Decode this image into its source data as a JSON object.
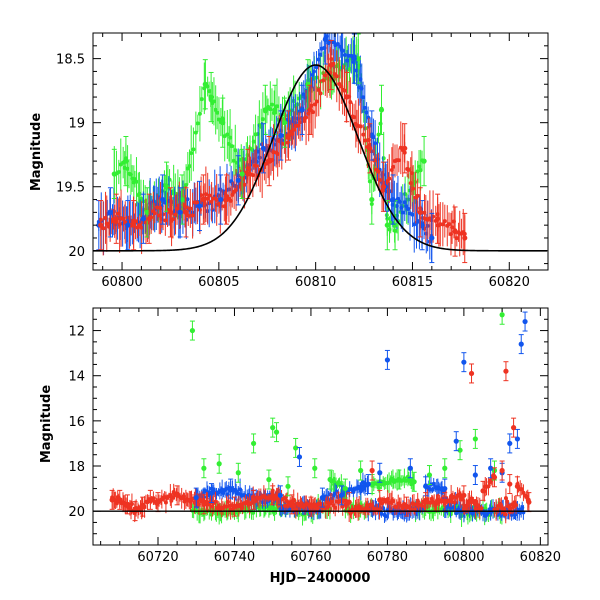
{
  "colors": {
    "green": "#33ee33",
    "blue": "#1155ee",
    "red": "#ee3322",
    "model": "#000000"
  },
  "chart_data": [
    {
      "type": "scatter",
      "panel": "top",
      "title": "",
      "xlabel": "",
      "ylabel": "Magnitude",
      "xlim": [
        60798.5,
        60822
      ],
      "ylim": [
        20.15,
        18.3
      ],
      "y_inverted": true,
      "x_ticks": [
        60800,
        60805,
        60810,
        60815,
        60820
      ],
      "x_tick_labels": [
        "60800",
        "60805",
        "60810",
        "60815",
        "60820"
      ],
      "y_ticks": [
        18.5,
        19,
        19.5,
        20
      ],
      "y_tick_labels": [
        "18.5",
        "19",
        "19.5",
        "20"
      ],
      "grid": false,
      "model_curve": {
        "peak_x": 60810,
        "peak_mag": 18.55,
        "baseline_mag": 20.0,
        "sigma_days": 2.2,
        "color": "black"
      },
      "series": [
        {
          "color_key": "green",
          "x": [
            60799.6,
            60800.2,
            60801.3,
            60802.3,
            60803.1,
            60804.3,
            60804.6,
            60805.2,
            60806.2,
            60807.4,
            60807.9,
            60808.4,
            60809.6,
            60812.2,
            60812.9,
            60813.4,
            60813.7,
            60814.1,
            60815.6
          ],
          "y": [
            19.4,
            19.3,
            19.7,
            19.5,
            19.6,
            18.7,
            18.8,
            19.0,
            19.4,
            18.9,
            18.9,
            19.0,
            18.7,
            18.5,
            19.6,
            18.9,
            19.8,
            19.8,
            19.3
          ]
        },
        {
          "color_key": "blue",
          "x": [
            60798.8,
            60799.4,
            60800.3,
            60801.1,
            60802.1,
            60803.0,
            60804.0,
            60805.1,
            60806.0,
            60807.3,
            60808.2,
            60809.3,
            60810.5,
            60812.0,
            60812.9,
            60813.6,
            60814.0,
            60815.5,
            60816.0
          ],
          "y": [
            19.8,
            19.7,
            19.8,
            19.75,
            19.6,
            19.7,
            19.65,
            19.6,
            19.45,
            19.2,
            19.1,
            18.9,
            18.35,
            18.5,
            19.1,
            19.5,
            19.6,
            19.8,
            19.9
          ]
        },
        {
          "color_key": "red",
          "x": [
            60798.9,
            60799.7,
            60800.6,
            60801.4,
            60802.5,
            60803.3,
            60804.2,
            60805.4,
            60806.5,
            60807.6,
            60808.6,
            60809.7,
            60810.8,
            60811.6,
            60812.8,
            60813.5,
            60814.6,
            60815.4,
            60816.3,
            60817.2,
            60817.7
          ],
          "y": [
            19.8,
            19.75,
            19.8,
            19.75,
            19.7,
            19.7,
            19.6,
            19.6,
            19.4,
            19.3,
            19.1,
            18.9,
            18.55,
            18.8,
            19.2,
            19.5,
            19.2,
            19.7,
            19.75,
            19.85,
            19.9
          ]
        }
      ]
    },
    {
      "type": "scatter",
      "panel": "bottom",
      "title": "",
      "xlabel": "HJD−2400000",
      "ylabel": "Magnitude",
      "xlim": [
        60703,
        60822
      ],
      "ylim": [
        21.5,
        11.0
      ],
      "y_inverted": true,
      "x_ticks": [
        60720,
        60740,
        60760,
        60780,
        60800,
        60820
      ],
      "x_tick_labels": [
        "60720",
        "60740",
        "60760",
        "60780",
        "60800",
        "60820"
      ],
      "y_ticks": [
        12,
        14,
        16,
        18,
        20
      ],
      "y_tick_labels": [
        "12",
        "14",
        "16",
        "18",
        "20"
      ],
      "grid": false,
      "baseline_mag": 20.0,
      "series": [
        {
          "color_key": "green",
          "x": [
            60729,
            60732,
            60736,
            60741,
            60745,
            60749,
            60750,
            60751,
            60754,
            60756,
            60761,
            60765,
            60769,
            60773,
            60776,
            60783,
            60787,
            60791,
            60795,
            60799,
            60803,
            60808,
            60810
          ],
          "y": [
            12.0,
            18.1,
            17.9,
            18.3,
            17.0,
            18.6,
            16.3,
            16.5,
            18.9,
            17.2,
            18.1,
            18.6,
            19.0,
            18.2,
            18.8,
            18.6,
            18.7,
            18.4,
            18.1,
            17.3,
            16.8,
            18.2,
            11.3
          ]
        },
        {
          "color_key": "blue",
          "x": [
            60730,
            60734,
            60739,
            60745,
            60752,
            60757,
            60763,
            60768,
            60775,
            60778,
            60780,
            60786,
            60790,
            60795,
            60798,
            60800,
            60803,
            60807,
            60810,
            60812,
            60814,
            60815,
            60816
          ],
          "y": [
            19.4,
            19.2,
            19.0,
            19.5,
            19.3,
            17.6,
            19.4,
            19.3,
            18.8,
            18.3,
            13.3,
            18.1,
            18.9,
            19.0,
            16.9,
            13.4,
            18.4,
            18.1,
            18.3,
            17.0,
            16.8,
            12.6,
            11.6
          ]
        },
        {
          "color_key": "red",
          "x": [
            60708,
            60710,
            60712,
            60714,
            60716,
            60718,
            60720,
            60725,
            60732,
            60740,
            60745,
            60750,
            60755,
            60760,
            60770,
            60776,
            60778,
            60785,
            60790,
            60795,
            60800,
            60802,
            60805,
            60808,
            60810,
            60811,
            60812,
            60813,
            60814,
            60817
          ],
          "y": [
            19.5,
            19.5,
            19.7,
            20.0,
            19.8,
            19.5,
            19.6,
            19.3,
            19.7,
            19.8,
            19.5,
            19.3,
            19.7,
            19.8,
            19.6,
            18.2,
            19.5,
            19.8,
            19.6,
            19.6,
            19.3,
            13.9,
            19.1,
            18.5,
            18.2,
            13.8,
            18.8,
            16.3,
            18.9,
            19.6
          ]
        }
      ]
    }
  ]
}
